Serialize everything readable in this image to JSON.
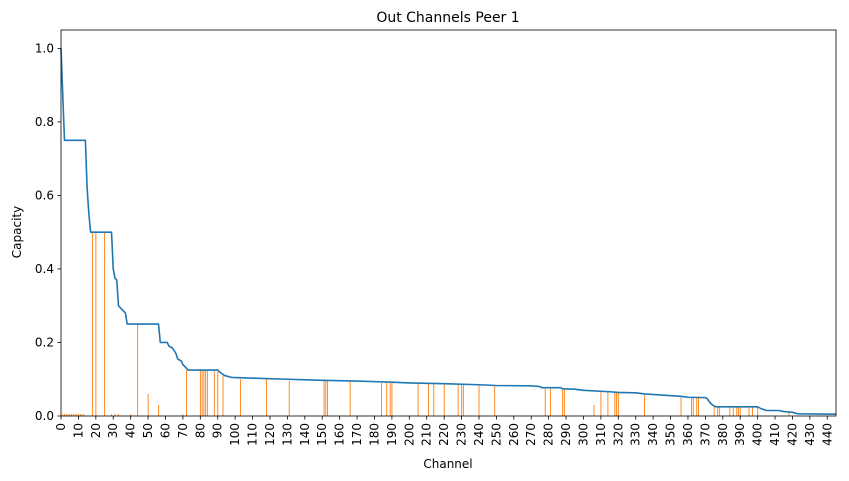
{
  "chart_data": {
    "type": "line",
    "title": "Out Channels Peer 1",
    "xlabel": "Channel",
    "ylabel": "Capacity",
    "xlim": [
      0,
      445
    ],
    "ylim": [
      0,
      1.05
    ],
    "x_ticks": [
      0,
      10,
      20,
      30,
      40,
      50,
      60,
      70,
      80,
      90,
      100,
      110,
      120,
      130,
      140,
      150,
      160,
      170,
      180,
      190,
      200,
      210,
      220,
      230,
      240,
      250,
      260,
      270,
      280,
      290,
      300,
      310,
      320,
      330,
      340,
      350,
      360,
      370,
      380,
      390,
      400,
      410,
      420,
      430,
      440
    ],
    "y_ticks": [
      0.0,
      0.2,
      0.4,
      0.6,
      0.8,
      1.0
    ],
    "grid": false,
    "series": [
      {
        "type": "line",
        "color": "#1f77b4",
        "points": [
          [
            0,
            1.0
          ],
          [
            2,
            0.75
          ],
          [
            14,
            0.75
          ],
          [
            15,
            0.62
          ],
          [
            16,
            0.55
          ],
          [
            17,
            0.5
          ],
          [
            29,
            0.5
          ],
          [
            30,
            0.4
          ],
          [
            31,
            0.375
          ],
          [
            32,
            0.37
          ],
          [
            33,
            0.3
          ],
          [
            35,
            0.29
          ],
          [
            37,
            0.28
          ],
          [
            38,
            0.25
          ],
          [
            56,
            0.25
          ],
          [
            57,
            0.2
          ],
          [
            61,
            0.2
          ],
          [
            62,
            0.19
          ],
          [
            64,
            0.185
          ],
          [
            66,
            0.17
          ],
          [
            67,
            0.155
          ],
          [
            69,
            0.15
          ],
          [
            70,
            0.14
          ],
          [
            72,
            0.13
          ],
          [
            73,
            0.125
          ],
          [
            90,
            0.125
          ],
          [
            91,
            0.12
          ],
          [
            94,
            0.11
          ],
          [
            98,
            0.105
          ],
          [
            110,
            0.103
          ],
          [
            130,
            0.1
          ],
          [
            150,
            0.097
          ],
          [
            170,
            0.095
          ],
          [
            190,
            0.092
          ],
          [
            200,
            0.09
          ],
          [
            220,
            0.088
          ],
          [
            240,
            0.085
          ],
          [
            250,
            0.083
          ],
          [
            270,
            0.082
          ],
          [
            275,
            0.08
          ],
          [
            276,
            0.077
          ],
          [
            287,
            0.077
          ],
          [
            288,
            0.074
          ],
          [
            295,
            0.073
          ],
          [
            300,
            0.07
          ],
          [
            315,
            0.066
          ],
          [
            320,
            0.064
          ],
          [
            330,
            0.063
          ],
          [
            335,
            0.06
          ],
          [
            345,
            0.057
          ],
          [
            355,
            0.054
          ],
          [
            360,
            0.051
          ],
          [
            370,
            0.05
          ],
          [
            371,
            0.048
          ],
          [
            372,
            0.04
          ],
          [
            374,
            0.03
          ],
          [
            376,
            0.025
          ],
          [
            400,
            0.025
          ],
          [
            402,
            0.02
          ],
          [
            405,
            0.015
          ],
          [
            412,
            0.015
          ],
          [
            415,
            0.012
          ],
          [
            420,
            0.01
          ],
          [
            423,
            0.006
          ],
          [
            445,
            0.005
          ]
        ]
      },
      {
        "type": "bar",
        "color": "#ff7f0e",
        "values": [
          [
            1,
            0.005
          ],
          [
            2,
            0.005
          ],
          [
            3,
            0.005
          ],
          [
            4,
            0.005
          ],
          [
            5,
            0.005
          ],
          [
            6,
            0.005
          ],
          [
            7,
            0.005
          ],
          [
            8,
            0.005
          ],
          [
            9,
            0.005
          ],
          [
            10,
            0.005
          ],
          [
            11,
            0.005
          ],
          [
            12,
            0.005
          ],
          [
            13,
            0.005
          ],
          [
            18,
            0.5
          ],
          [
            20,
            0.5
          ],
          [
            25,
            0.5
          ],
          [
            29,
            0.005
          ],
          [
            31,
            0.005
          ],
          [
            33,
            0.005
          ],
          [
            40,
            0.005
          ],
          [
            44,
            0.25
          ],
          [
            50,
            0.06
          ],
          [
            56,
            0.03
          ],
          [
            70,
            0.005
          ],
          [
            72,
            0.125
          ],
          [
            80,
            0.125
          ],
          [
            81,
            0.125
          ],
          [
            82,
            0.125
          ],
          [
            83,
            0.125
          ],
          [
            84,
            0.125
          ],
          [
            88,
            0.125
          ],
          [
            90,
            0.12
          ],
          [
            93,
            0.11
          ],
          [
            103,
            0.1
          ],
          [
            118,
            0.1
          ],
          [
            131,
            0.095
          ],
          [
            151,
            0.095
          ],
          [
            152,
            0.095
          ],
          [
            153,
            0.095
          ],
          [
            166,
            0.095
          ],
          [
            184,
            0.09
          ],
          [
            187,
            0.09
          ],
          [
            189,
            0.09
          ],
          [
            190,
            0.09
          ],
          [
            205,
            0.09
          ],
          [
            211,
            0.088
          ],
          [
            214,
            0.088
          ],
          [
            220,
            0.085
          ],
          [
            228,
            0.085
          ],
          [
            230,
            0.085
          ],
          [
            231,
            0.085
          ],
          [
            240,
            0.083
          ],
          [
            249,
            0.083
          ],
          [
            278,
            0.077
          ],
          [
            281,
            0.077
          ],
          [
            288,
            0.074
          ],
          [
            289,
            0.074
          ],
          [
            306,
            0.03
          ],
          [
            310,
            0.066
          ],
          [
            314,
            0.064
          ],
          [
            318,
            0.063
          ],
          [
            319,
            0.063
          ],
          [
            320,
            0.063
          ],
          [
            335,
            0.057
          ],
          [
            356,
            0.05
          ],
          [
            362,
            0.05
          ],
          [
            363,
            0.05
          ],
          [
            365,
            0.05
          ],
          [
            366,
            0.05
          ],
          [
            375,
            0.025
          ],
          [
            377,
            0.025
          ],
          [
            378,
            0.025
          ],
          [
            384,
            0.025
          ],
          [
            386,
            0.025
          ],
          [
            388,
            0.025
          ],
          [
            389,
            0.025
          ],
          [
            390,
            0.025
          ],
          [
            395,
            0.025
          ],
          [
            397,
            0.025
          ],
          [
            400,
            0.025
          ],
          [
            418,
            0.01
          ]
        ]
      }
    ]
  }
}
